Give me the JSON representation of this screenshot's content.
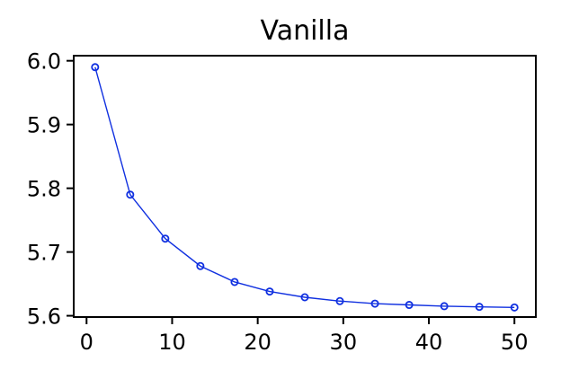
{
  "chart_data": {
    "type": "line",
    "title": "Vanilla",
    "xlabel": "",
    "ylabel": "",
    "x": [
      1,
      5.1,
      9.2,
      13.3,
      17.3,
      21.4,
      25.5,
      29.6,
      33.7,
      37.7,
      41.8,
      45.9,
      50
    ],
    "series": [
      {
        "values": [
          5.99,
          5.79,
          5.721,
          5.678,
          5.653,
          5.638,
          5.629,
          5.623,
          5.619,
          5.617,
          5.615,
          5.614,
          5.613
        ],
        "color": "#1030e0",
        "marker": "open-circle"
      }
    ],
    "xlim": [
      -1.5,
      52.5
    ],
    "ylim": [
      5.598,
      6.008
    ],
    "xticks": [
      0,
      10,
      20,
      30,
      40,
      50
    ],
    "yticks": [
      5.6,
      5.7,
      5.8,
      5.9,
      6.0
    ],
    "xtick_labels": [
      "0",
      "10",
      "20",
      "30",
      "40",
      "50"
    ],
    "ytick_labels": [
      "5.6",
      "5.7",
      "5.8",
      "5.9",
      "6.0"
    ],
    "grid": false,
    "legend": "none"
  }
}
